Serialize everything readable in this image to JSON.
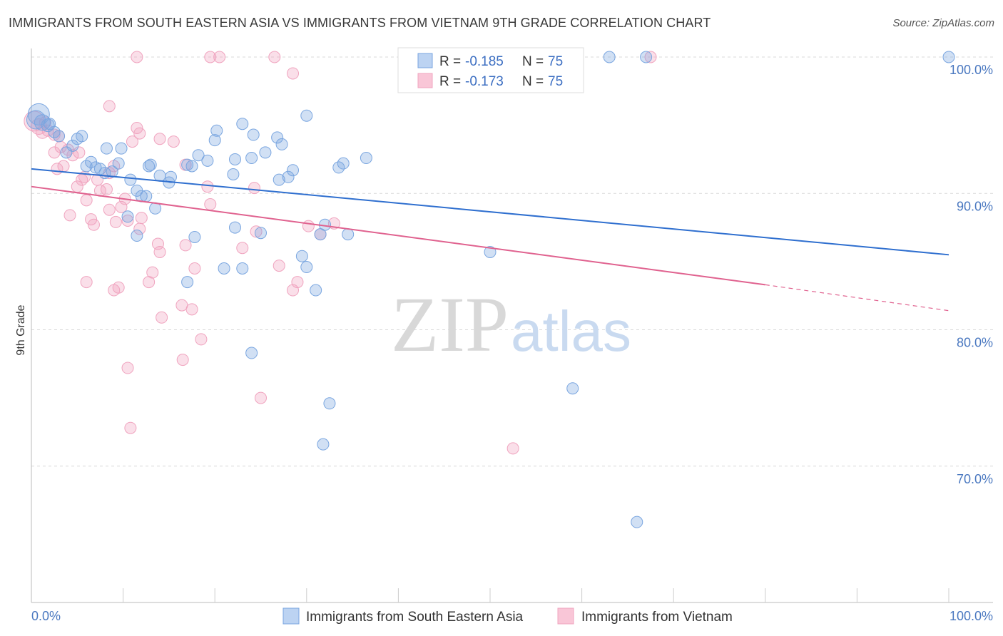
{
  "title": "IMMIGRANTS FROM SOUTH EASTERN ASIA VS IMMIGRANTS FROM VIETNAM 9TH GRADE CORRELATION CHART",
  "source": "Source: ZipAtlas.com",
  "watermark": {
    "zip": "ZIP",
    "atlas": "atlas"
  },
  "colors": {
    "blue": "#7aa6e0",
    "blue_line": "#2f6fcf",
    "pink": "#f0a4bf",
    "pink_line": "#e0628f",
    "axis_text": "#4a78c0"
  },
  "legend": {
    "rows": [
      {
        "r_label": "R =",
        "r_value": "-0.185",
        "n_label": "N =",
        "n_value": "75"
      },
      {
        "r_label": "R =",
        "r_value": "-0.173",
        "n_label": "N =",
        "n_value": "75"
      }
    ]
  },
  "chart_data": {
    "type": "scatter",
    "title": "IMMIGRANTS FROM SOUTH EASTERN ASIA VS IMMIGRANTS FROM VIETNAM 9TH GRADE CORRELATION CHART",
    "xlabel": "",
    "ylabel": "9th Grade",
    "xlim": [
      0,
      100
    ],
    "ylim": [
      60,
      102
    ],
    "x_tick_labels": [
      "0.0%",
      "100.0%"
    ],
    "y_ticks": [
      100,
      90,
      80,
      70
    ],
    "y_tick_labels": [
      "100.0%",
      "90.0%",
      "80.0%",
      "70.0%"
    ],
    "grid": true,
    "legend_position": "top-center",
    "series": [
      {
        "name": "Immigrants from South Eastern Asia",
        "color": "#7aa6e0",
        "trend": {
          "x": [
            0,
            100
          ],
          "y": [
            91.8,
            85.5
          ]
        },
        "points": [
          [
            0.8,
            95.8
          ],
          [
            0.5,
            95.4
          ],
          [
            1.2,
            95.2
          ],
          [
            1.8,
            95.0
          ],
          [
            2.5,
            94.5
          ],
          [
            3.0,
            94.2
          ],
          [
            5.0,
            94.0
          ],
          [
            5.5,
            94.2
          ],
          [
            3.8,
            93.0
          ],
          [
            8.2,
            93.3
          ],
          [
            9.8,
            93.3
          ],
          [
            6.0,
            92.0
          ],
          [
            7.0,
            91.9
          ],
          [
            9.5,
            92.2
          ],
          [
            7.5,
            91.8
          ],
          [
            8.8,
            91.6
          ],
          [
            12.8,
            92.0
          ],
          [
            13.0,
            92.1
          ],
          [
            10.8,
            91.0
          ],
          [
            11.5,
            90.2
          ],
          [
            12.5,
            89.8
          ],
          [
            15.2,
            91.2
          ],
          [
            18.2,
            92.8
          ],
          [
            17.0,
            92.1
          ],
          [
            19.2,
            92.4
          ],
          [
            17.5,
            92.0
          ],
          [
            20.0,
            93.9
          ],
          [
            20.2,
            94.6
          ],
          [
            23.0,
            95.1
          ],
          [
            24.2,
            94.3
          ],
          [
            22.2,
            92.5
          ],
          [
            22.0,
            91.4
          ],
          [
            24.0,
            92.6
          ],
          [
            25.5,
            93.0
          ],
          [
            26.8,
            94.1
          ],
          [
            27.3,
            93.6
          ],
          [
            27.0,
            91.0
          ],
          [
            28.0,
            91.2
          ],
          [
            28.5,
            91.7
          ],
          [
            30.0,
            95.7
          ],
          [
            14.0,
            91.3
          ],
          [
            12.0,
            89.8
          ],
          [
            15.0,
            90.8
          ],
          [
            13.5,
            88.9
          ],
          [
            10.5,
            88.3
          ],
          [
            11.5,
            86.9
          ],
          [
            17.8,
            86.8
          ],
          [
            22.2,
            87.5
          ],
          [
            25.0,
            87.1
          ],
          [
            17.0,
            83.5
          ],
          [
            21.0,
            84.5
          ],
          [
            23.0,
            84.5
          ],
          [
            29.5,
            85.4
          ],
          [
            30.0,
            84.6
          ],
          [
            31.0,
            82.9
          ],
          [
            31.5,
            87.0
          ],
          [
            32.0,
            87.7
          ],
          [
            34.5,
            87.0
          ],
          [
            34.0,
            92.2
          ],
          [
            33.5,
            91.9
          ],
          [
            36.5,
            92.6
          ],
          [
            24.0,
            78.3
          ],
          [
            32.5,
            74.6
          ],
          [
            31.8,
            71.6
          ],
          [
            50.0,
            85.7
          ],
          [
            59.0,
            75.7
          ],
          [
            66.0,
            65.9
          ],
          [
            63.0,
            100
          ],
          [
            67.0,
            100
          ],
          [
            100,
            100
          ],
          [
            43.0,
            100
          ],
          [
            2.0,
            95.1
          ],
          [
            4.5,
            93.5
          ],
          [
            6.5,
            92.3
          ],
          [
            8.0,
            91.5
          ]
        ],
        "sizes": [
          30,
          26,
          22,
          18,
          16,
          16,
          16,
          16,
          16,
          16,
          16,
          16,
          16,
          16,
          16,
          16,
          16,
          16,
          16,
          16,
          16,
          16,
          16,
          16,
          16,
          16,
          16,
          16,
          16,
          16,
          16,
          16,
          16,
          16,
          16,
          16,
          16,
          16,
          16,
          16,
          16,
          16,
          16,
          16,
          16,
          16,
          16,
          16,
          16,
          16,
          16,
          16,
          16,
          16,
          16,
          16,
          16,
          16,
          16,
          16,
          16,
          16,
          16,
          16,
          16,
          16,
          16,
          16,
          16,
          16,
          16,
          16,
          16,
          16,
          16
        ]
      },
      {
        "name": "Immigrants from Vietnam",
        "color": "#f0a4bf",
        "trend": {
          "x": [
            0,
            80
          ],
          "y": [
            90.5,
            83.3
          ]
        },
        "trend_dashed": {
          "x": [
            80,
            100
          ],
          "y": [
            83.3,
            81.4
          ]
        },
        "points": [
          [
            0.3,
            95.3
          ],
          [
            0.8,
            94.9
          ],
          [
            1.2,
            94.5
          ],
          [
            1.8,
            94.6
          ],
          [
            2.5,
            94.3
          ],
          [
            3.2,
            93.4
          ],
          [
            4.0,
            93.2
          ],
          [
            5.2,
            93.0
          ],
          [
            2.5,
            93.0
          ],
          [
            3.5,
            92.0
          ],
          [
            5.0,
            90.5
          ],
          [
            5.8,
            91.2
          ],
          [
            7.2,
            91.0
          ],
          [
            8.2,
            90.3
          ],
          [
            7.5,
            90.2
          ],
          [
            8.5,
            91.5
          ],
          [
            9.0,
            92.0
          ],
          [
            11.0,
            93.8
          ],
          [
            11.5,
            94.8
          ],
          [
            11.8,
            94.4
          ],
          [
            8.5,
            96.4
          ],
          [
            15.5,
            93.8
          ],
          [
            16.8,
            92.1
          ],
          [
            14.0,
            94.0
          ],
          [
            12.0,
            88.2
          ],
          [
            10.5,
            88.0
          ],
          [
            9.2,
            87.9
          ],
          [
            8.5,
            88.8
          ],
          [
            6.5,
            88.1
          ],
          [
            6.8,
            87.7
          ],
          [
            4.2,
            88.4
          ],
          [
            11.8,
            87.4
          ],
          [
            13.8,
            86.3
          ],
          [
            14.0,
            85.7
          ],
          [
            13.2,
            84.2
          ],
          [
            12.8,
            83.5
          ],
          [
            9.0,
            82.9
          ],
          [
            9.5,
            83.1
          ],
          [
            14.2,
            80.9
          ],
          [
            16.4,
            81.8
          ],
          [
            17.5,
            81.5
          ],
          [
            16.8,
            86.2
          ],
          [
            17.8,
            84.5
          ],
          [
            19.2,
            90.5
          ],
          [
            19.5,
            89.2
          ],
          [
            23.0,
            86.0
          ],
          [
            24.5,
            87.2
          ],
          [
            24.3,
            90.4
          ],
          [
            27.0,
            84.7
          ],
          [
            29.0,
            83.5
          ],
          [
            28.5,
            82.9
          ],
          [
            30.2,
            87.6
          ],
          [
            31.5,
            87.0
          ],
          [
            33.0,
            87.8
          ],
          [
            6.0,
            83.5
          ],
          [
            10.5,
            77.2
          ],
          [
            10.8,
            72.8
          ],
          [
            16.5,
            77.8
          ],
          [
            18.5,
            79.3
          ],
          [
            25.0,
            75.0
          ],
          [
            11.5,
            100
          ],
          [
            20.5,
            100
          ],
          [
            26.5,
            100
          ],
          [
            28.5,
            98.8
          ],
          [
            52.5,
            71.3
          ],
          [
            67.5,
            100
          ],
          [
            19.5,
            100
          ],
          [
            5.5,
            91.0
          ],
          [
            6.0,
            89.5
          ],
          [
            9.8,
            89.0
          ],
          [
            10.2,
            89.6
          ],
          [
            3.0,
            94.2
          ],
          [
            4.5,
            92.8
          ],
          [
            1.5,
            95.2
          ],
          [
            2.8,
            91.8
          ]
        ],
        "sizes": [
          28,
          22,
          18,
          16,
          16,
          16,
          16,
          16,
          16,
          16,
          16,
          16,
          16,
          16,
          16,
          16,
          16,
          16,
          16,
          16,
          16,
          16,
          16,
          16,
          16,
          16,
          16,
          16,
          16,
          16,
          16,
          16,
          16,
          16,
          16,
          16,
          16,
          16,
          16,
          16,
          16,
          16,
          16,
          16,
          16,
          16,
          16,
          16,
          16,
          16,
          16,
          16,
          16,
          16,
          16,
          16,
          16,
          16,
          16,
          16,
          16,
          16,
          16,
          16,
          16,
          16,
          16,
          16,
          16,
          16,
          16,
          16,
          16,
          16,
          16
        ]
      }
    ]
  }
}
